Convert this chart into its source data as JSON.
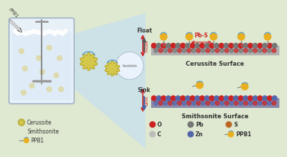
{
  "bg_color": "#dfe8d0",
  "cerussite_color": "#d4c84a",
  "cerussite_edge": "#a09030",
  "ppb1_head_color": "#e8b020",
  "ppb1_tail_color": "#888888",
  "ppb1_curl_color": "#5599cc",
  "o_color": "#cc2222",
  "pb_color": "#777777",
  "s_color": "#bb6622",
  "c_color": "#bbbbbb",
  "zn_color": "#5566aa",
  "surface_cer_color": "#aaaaaa",
  "surface_smi_color": "#8888aa",
  "float_arrow_color": "#555555",
  "sink_arrow_color": "#4466aa",
  "pbs_color": "#cc2222",
  "trap_color": "#c8e0f0",
  "cell_fill": "#e8f0f8",
  "cell_edge": "#aabbcc",
  "foam_color": "#f5f8ff",
  "bubble_fill": "#f0f5ff",
  "bubble_edge": "#aabbcc",
  "float_label": "Float",
  "sink_label": "Sink",
  "cerussite_surface_label": "Cerussite Surface",
  "smithsonite_surface_label": "Smithsonite Surface",
  "pbs_label": "Pb-S",
  "bubble_label": "bubble",
  "ppb1_inject_label": "PPB1",
  "legend_cerussite": "Cerussite",
  "legend_smithsonite": "Smithsonite",
  "legend_ppb1": "PPB1",
  "atom_labels": [
    "O",
    "Pb",
    "S",
    "C",
    "Zn",
    "PPB1"
  ]
}
